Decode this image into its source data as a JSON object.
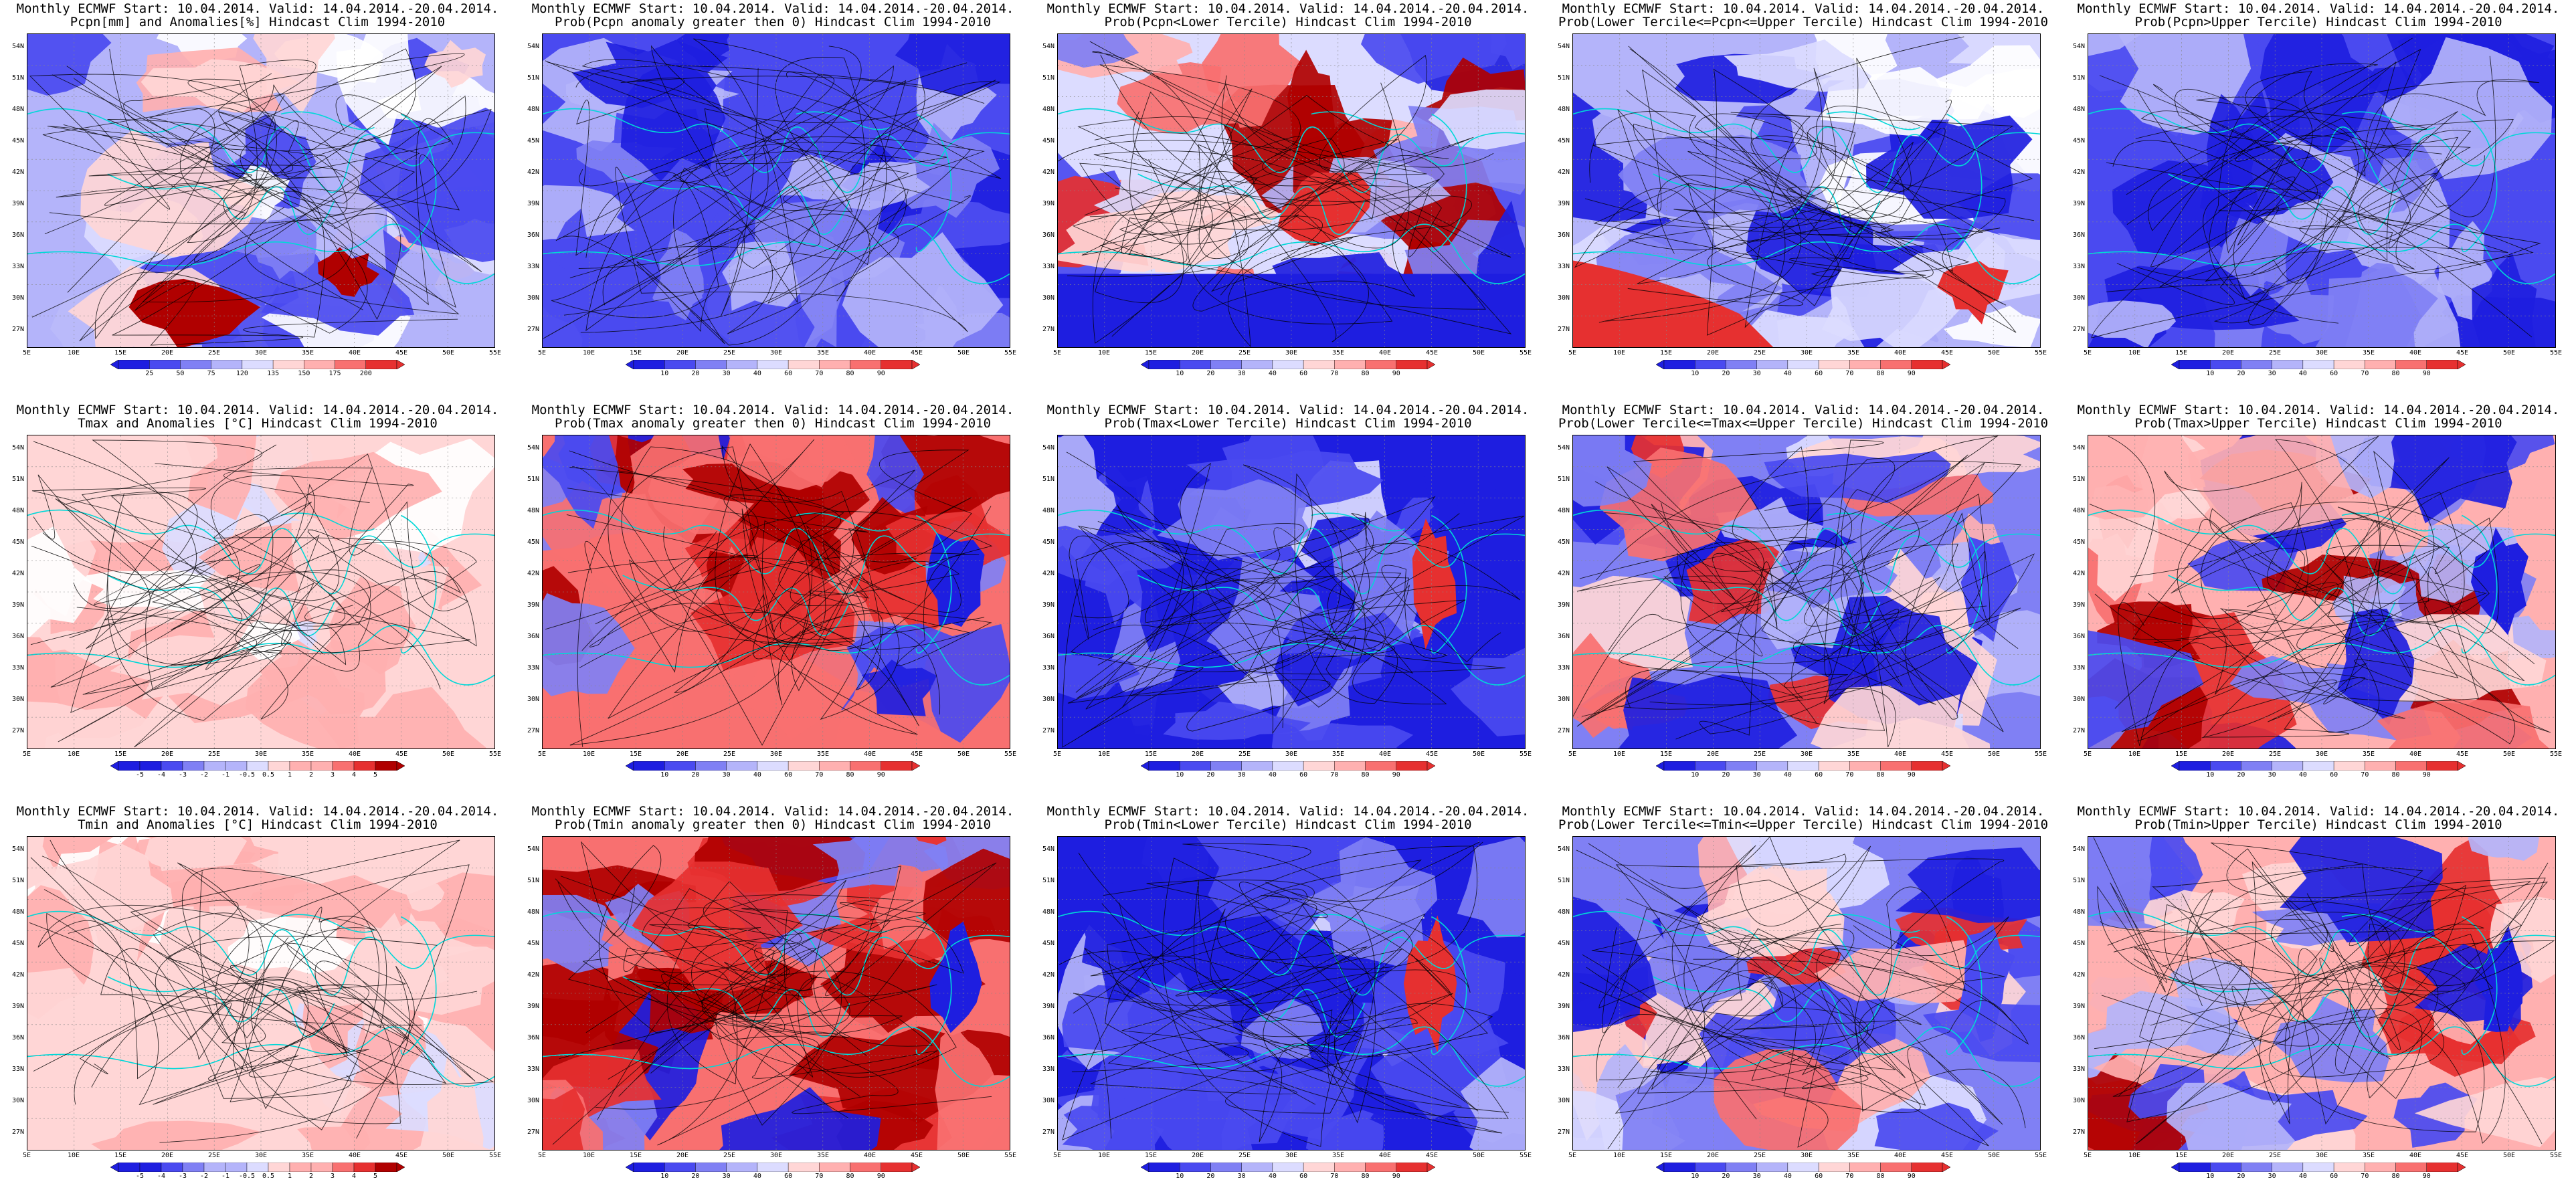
{
  "palette": {
    "deep_blue": "#1e1ee0",
    "blue": "#4a4af0",
    "mid_blue": "#8080f4",
    "light_blue": "#b4b4fa",
    "pale_blue": "#dcdcff",
    "white": "#ffffff",
    "pale_red": "#ffd6d6",
    "light_red": "#ffb0b0",
    "mid_red": "#f87070",
    "red": "#e63030",
    "deep_red": "#b00000",
    "coast": "#00d8d8",
    "contour": "#000000"
  },
  "lat_labels": [
    "54N",
    "51N",
    "48N",
    "45N",
    "42N",
    "39N",
    "36N",
    "33N",
    "30N",
    "27N"
  ],
  "lon_labels": [
    "5E",
    "10E",
    "15E",
    "20E",
    "25E",
    "30E",
    "35E",
    "40E",
    "45E",
    "50E",
    "55E"
  ],
  "panels": [
    {
      "title1": "Monthly ECMWF Start: 10.04.2014. Valid: 14.04.2014.-20.04.2014.",
      "title2": "Pcpn[mm] and Anomalies[%]",
      "title2_suffix": " Hindcast Clim 1994-2010",
      "colorbar": [
        "25",
        "50",
        "75",
        "120",
        "135",
        "150",
        "175",
        "200"
      ],
      "scheme": "anom",
      "ftype": "pcpn"
    },
    {
      "title1": "Monthly ECMWF Start: 10.04.2014. Valid: 14.04.2014.-20.04.2014.",
      "title2": "Prob(Pcpn anomaly greater then 0)",
      "title2_suffix": " Hindcast Clim 1994-2010",
      "colorbar": [
        "10",
        "20",
        "30",
        "40",
        "60",
        "70",
        "80",
        "90"
      ],
      "scheme": "prob",
      "ftype": "blue"
    },
    {
      "title1": "Monthly ECMWF Start: 10.04.2014. Valid: 14.04.2014.-20.04.2014.",
      "title2": "Prob(Pcpn<Lower Tercile)",
      "title2_suffix": " Hindcast Clim 1994-2010",
      "colorbar": [
        "10",
        "20",
        "30",
        "40",
        "60",
        "70",
        "80",
        "90"
      ],
      "scheme": "prob",
      "ftype": "mixed"
    },
    {
      "title1": "Monthly ECMWF Start: 10.04.2014. Valid: 14.04.2014.-20.04.2014.",
      "title2": "Prob(Lower Tercile<=Pcpn<=Upper Tercile)",
      "title2_suffix": " Hindcast Clim 1994-2010",
      "colorbar": [
        "10",
        "20",
        "30",
        "40",
        "60",
        "70",
        "80",
        "90"
      ],
      "scheme": "prob",
      "ftype": "blue_south_red"
    },
    {
      "title1": "Monthly ECMWF Start: 10.04.2014. Valid: 14.04.2014.-20.04.2014.",
      "title2": "Prob(Pcpn>Upper Tercile)",
      "title2_suffix": " Hindcast Clim 1994-2010",
      "colorbar": [
        "10",
        "20",
        "30",
        "40",
        "60",
        "70",
        "80",
        "90"
      ],
      "scheme": "prob",
      "ftype": "blue"
    },
    {
      "title1": "Monthly ECMWF Start: 10.04.2014. Valid: 14.04.2014.-20.04.2014.",
      "title2": "Tmax and Anomalies [°C]",
      "title2_suffix": " Hindcast Clim 1994-2010",
      "colorbar": [
        "-5",
        "-4",
        "-3",
        "-2",
        "-1",
        "-0.5",
        "0.5",
        "1",
        "2",
        "3",
        "4",
        "5"
      ],
      "scheme": "anom",
      "ftype": "pale_red"
    },
    {
      "title1": "Monthly ECMWF Start: 10.04.2014. Valid: 14.04.2014.-20.04.2014.",
      "title2": "Prob(Tmax anomaly greater then 0)",
      "title2_suffix": " Hindcast Clim 1994-2010",
      "colorbar": [
        "10",
        "20",
        "30",
        "40",
        "60",
        "70",
        "80",
        "90"
      ],
      "scheme": "prob",
      "ftype": "red"
    },
    {
      "title1": "Monthly ECMWF Start: 10.04.2014. Valid: 14.04.2014.-20.04.2014.",
      "title2": "Prob(Tmax<Lower Tercile)",
      "title2_suffix": " Hindcast Clim 1994-2010",
      "colorbar": [
        "10",
        "20",
        "30",
        "40",
        "60",
        "70",
        "80",
        "90"
      ],
      "scheme": "prob",
      "ftype": "deepblue"
    },
    {
      "title1": "Monthly ECMWF Start: 10.04.2014. Valid: 14.04.2014.-20.04.2014.",
      "title2": "Prob(Lower Tercile<=Tmax<=Upper Tercile)",
      "title2_suffix": " Hindcast Clim 1994-2010",
      "colorbar": [
        "10",
        "20",
        "30",
        "40",
        "60",
        "70",
        "80",
        "90"
      ],
      "scheme": "prob",
      "ftype": "blue_mixed"
    },
    {
      "title1": "Monthly ECMWF Start: 10.04.2014. Valid: 14.04.2014.-20.04.2014.",
      "title2": "Prob(Tmax>Upper Tercile)",
      "title2_suffix": " Hindcast Clim 1994-2010",
      "colorbar": [
        "10",
        "20",
        "30",
        "40",
        "60",
        "70",
        "80",
        "90"
      ],
      "scheme": "prob",
      "ftype": "red_mixed"
    },
    {
      "title1": "Monthly ECMWF Start: 10.04.2014. Valid: 14.04.2014.-20.04.2014.",
      "title2": "Tmin and Anomalies [°C]",
      "title2_suffix": " Hindcast Clim 1994-2010",
      "colorbar": [
        "-5",
        "-4",
        "-3",
        "-2",
        "-1",
        "-0.5",
        "0.5",
        "1",
        "2",
        "3",
        "4",
        "5"
      ],
      "scheme": "anom",
      "ftype": "pale_red"
    },
    {
      "title1": "Monthly ECMWF Start: 10.04.2014. Valid: 14.04.2014.-20.04.2014.",
      "title2": "Prob(Tmin anomaly greater then 0)",
      "title2_suffix": " Hindcast Clim 1994-2010",
      "colorbar": [
        "10",
        "20",
        "30",
        "40",
        "60",
        "70",
        "80",
        "90"
      ],
      "scheme": "prob",
      "ftype": "red"
    },
    {
      "title1": "Monthly ECMWF Start: 10.04.2014. Valid: 14.04.2014.-20.04.2014.",
      "title2": "Prob(Tmin<Lower Tercile)",
      "title2_suffix": " Hindcast Clim 1994-2010",
      "colorbar": [
        "10",
        "20",
        "30",
        "40",
        "60",
        "70",
        "80",
        "90"
      ],
      "scheme": "prob",
      "ftype": "deepblue"
    },
    {
      "title1": "Monthly ECMWF Start: 10.04.2014. Valid: 14.04.2014.-20.04.2014.",
      "title2": "Prob(Lower Tercile<=Tmin<=Upper Tercile)",
      "title2_suffix": " Hindcast Clim 1994-2010",
      "colorbar": [
        "10",
        "20",
        "30",
        "40",
        "60",
        "70",
        "80",
        "90"
      ],
      "scheme": "prob",
      "ftype": "blue_mixed"
    },
    {
      "title1": "Monthly ECMWF Start: 10.04.2014. Valid: 14.04.2014.-20.04.2014.",
      "title2": "Prob(Tmin>Upper Tercile)",
      "title2_suffix": " Hindcast Clim 1994-2010",
      "colorbar": [
        "10",
        "20",
        "30",
        "40",
        "60",
        "70",
        "80",
        "90"
      ],
      "scheme": "prob",
      "ftype": "red_mixed"
    }
  ]
}
